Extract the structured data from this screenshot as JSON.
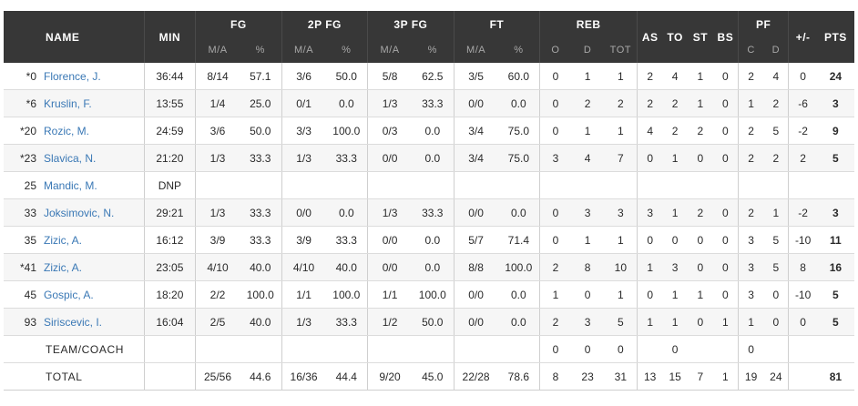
{
  "headers": {
    "name": "NAME",
    "min": "MIN",
    "fg": "FG",
    "fg2": "2P FG",
    "fg3": "3P FG",
    "ft": "FT",
    "reb": "REB",
    "as": "AS",
    "to": "TO",
    "st": "ST",
    "bs": "BS",
    "pf": "PF",
    "pm": "+/-",
    "pts": "PTS",
    "ma": "M/A",
    "pct": "%",
    "o": "O",
    "d": "D",
    "tot": "TOT",
    "c": "C",
    "pfd": "D"
  },
  "players": [
    {
      "no": "*0",
      "name": "Florence, J.",
      "min": "36:44",
      "fg": "8/14",
      "fgp": "57.1",
      "p2": "3/6",
      "p2p": "50.0",
      "p3": "5/8",
      "p3p": "62.5",
      "ft": "3/5",
      "ftp": "60.0",
      "o": "0",
      "d": "1",
      "tot": "1",
      "as": "2",
      "to": "4",
      "st": "1",
      "bs": "0",
      "pfc": "2",
      "pfd": "4",
      "pm": "0",
      "pts": "24"
    },
    {
      "no": "*6",
      "name": "Kruslin, F.",
      "min": "13:55",
      "fg": "1/4",
      "fgp": "25.0",
      "p2": "0/1",
      "p2p": "0.0",
      "p3": "1/3",
      "p3p": "33.3",
      "ft": "0/0",
      "ftp": "0.0",
      "o": "0",
      "d": "2",
      "tot": "2",
      "as": "2",
      "to": "2",
      "st": "1",
      "bs": "0",
      "pfc": "1",
      "pfd": "2",
      "pm": "-6",
      "pts": "3"
    },
    {
      "no": "*20",
      "name": "Rozic, M.",
      "min": "24:59",
      "fg": "3/6",
      "fgp": "50.0",
      "p2": "3/3",
      "p2p": "100.0",
      "p3": "0/3",
      "p3p": "0.0",
      "ft": "3/4",
      "ftp": "75.0",
      "o": "0",
      "d": "1",
      "tot": "1",
      "as": "4",
      "to": "2",
      "st": "2",
      "bs": "0",
      "pfc": "2",
      "pfd": "5",
      "pm": "-2",
      "pts": "9"
    },
    {
      "no": "*23",
      "name": "Slavica, N.",
      "min": "21:20",
      "fg": "1/3",
      "fgp": "33.3",
      "p2": "1/3",
      "p2p": "33.3",
      "p3": "0/0",
      "p3p": "0.0",
      "ft": "3/4",
      "ftp": "75.0",
      "o": "3",
      "d": "4",
      "tot": "7",
      "as": "0",
      "to": "1",
      "st": "0",
      "bs": "0",
      "pfc": "2",
      "pfd": "2",
      "pm": "2",
      "pts": "5"
    },
    {
      "no": "25",
      "name": "Mandic, M.",
      "min": "DNP",
      "fg": "",
      "fgp": "",
      "p2": "",
      "p2p": "",
      "p3": "",
      "p3p": "",
      "ft": "",
      "ftp": "",
      "o": "",
      "d": "",
      "tot": "",
      "as": "",
      "to": "",
      "st": "",
      "bs": "",
      "pfc": "",
      "pfd": "",
      "pm": "",
      "pts": ""
    },
    {
      "no": "33",
      "name": "Joksimovic, N.",
      "min": "29:21",
      "fg": "1/3",
      "fgp": "33.3",
      "p2": "0/0",
      "p2p": "0.0",
      "p3": "1/3",
      "p3p": "33.3",
      "ft": "0/0",
      "ftp": "0.0",
      "o": "0",
      "d": "3",
      "tot": "3",
      "as": "3",
      "to": "1",
      "st": "2",
      "bs": "0",
      "pfc": "2",
      "pfd": "1",
      "pm": "-2",
      "pts": "3"
    },
    {
      "no": "35",
      "name": "Zizic, A.",
      "min": "16:12",
      "fg": "3/9",
      "fgp": "33.3",
      "p2": "3/9",
      "p2p": "33.3",
      "p3": "0/0",
      "p3p": "0.0",
      "ft": "5/7",
      "ftp": "71.4",
      "o": "0",
      "d": "1",
      "tot": "1",
      "as": "0",
      "to": "0",
      "st": "0",
      "bs": "0",
      "pfc": "3",
      "pfd": "5",
      "pm": "-10",
      "pts": "11"
    },
    {
      "no": "*41",
      "name": "Zizic, A.",
      "min": "23:05",
      "fg": "4/10",
      "fgp": "40.0",
      "p2": "4/10",
      "p2p": "40.0",
      "p3": "0/0",
      "p3p": "0.0",
      "ft": "8/8",
      "ftp": "100.0",
      "o": "2",
      "d": "8",
      "tot": "10",
      "as": "1",
      "to": "3",
      "st": "0",
      "bs": "0",
      "pfc": "3",
      "pfd": "5",
      "pm": "8",
      "pts": "16"
    },
    {
      "no": "45",
      "name": "Gospic, A.",
      "min": "18:20",
      "fg": "2/2",
      "fgp": "100.0",
      "p2": "1/1",
      "p2p": "100.0",
      "p3": "1/1",
      "p3p": "100.0",
      "ft": "0/0",
      "ftp": "0.0",
      "o": "1",
      "d": "0",
      "tot": "1",
      "as": "0",
      "to": "1",
      "st": "1",
      "bs": "0",
      "pfc": "3",
      "pfd": "0",
      "pm": "-10",
      "pts": "5"
    },
    {
      "no": "93",
      "name": "Siriscevic, I.",
      "min": "16:04",
      "fg": "2/5",
      "fgp": "40.0",
      "p2": "1/3",
      "p2p": "33.3",
      "p3": "1/2",
      "p3p": "50.0",
      "ft": "0/0",
      "ftp": "0.0",
      "o": "2",
      "d": "3",
      "tot": "5",
      "as": "1",
      "to": "1",
      "st": "0",
      "bs": "1",
      "pfc": "1",
      "pfd": "0",
      "pm": "0",
      "pts": "5"
    }
  ],
  "team": {
    "label": "TEAM/COACH",
    "o": "0",
    "d": "0",
    "tot": "0",
    "to": "0",
    "pfc": "0"
  },
  "total": {
    "label": "TOTAL",
    "fg": "25/56",
    "fgp": "44.6",
    "p2": "16/36",
    "p2p": "44.4",
    "p3": "9/20",
    "p3p": "45.0",
    "ft": "22/28",
    "ftp": "78.6",
    "o": "8",
    "d": "23",
    "tot": "31",
    "as": "13",
    "to": "15",
    "st": "7",
    "bs": "1",
    "pfc": "19",
    "pfd": "24",
    "pts": "81"
  }
}
